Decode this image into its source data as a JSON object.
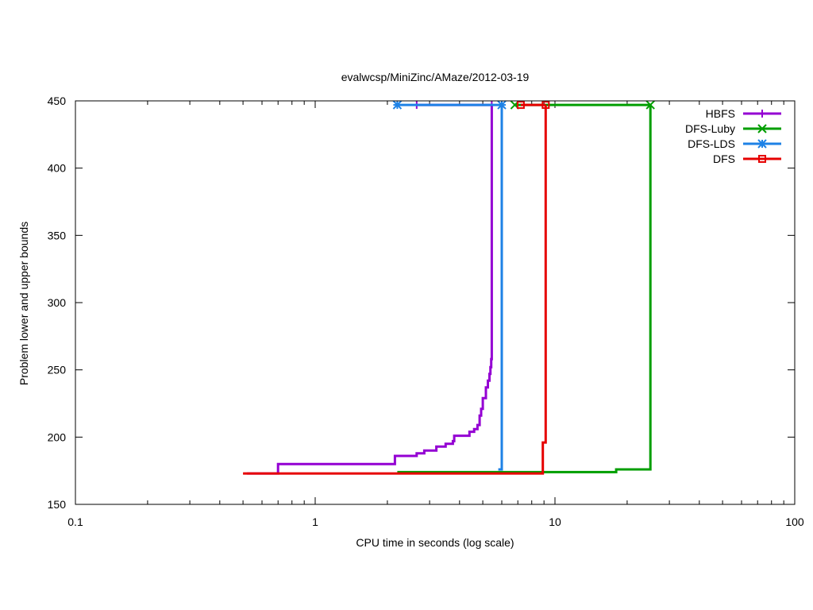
{
  "chart_data": {
    "type": "line",
    "title": "evalwcsp/MiniZinc/AMaze/2012-03-19",
    "xlabel": "CPU time in seconds (log scale)",
    "ylabel": "Problem lower and upper bounds",
    "xscale": "log",
    "xlim": [
      0.1,
      100
    ],
    "ylim": [
      150,
      450
    ],
    "xticks": [
      {
        "value": 0.1,
        "label": "0.1"
      },
      {
        "value": 1,
        "label": "1"
      },
      {
        "value": 10,
        "label": "10"
      },
      {
        "value": 100,
        "label": "100"
      }
    ],
    "yticks": [
      {
        "value": 150,
        "label": "150"
      },
      {
        "value": 200,
        "label": "200"
      },
      {
        "value": 250,
        "label": "250"
      },
      {
        "value": 300,
        "label": "300"
      },
      {
        "value": 350,
        "label": "350"
      },
      {
        "value": 400,
        "label": "400"
      },
      {
        "value": 450,
        "label": "450"
      }
    ],
    "grid": false,
    "legend_position": "top-right",
    "series": [
      {
        "name": "HBFS",
        "color": "#9400d3",
        "marker": "plus",
        "lower": [
          [
            0.52,
            173
          ],
          [
            0.7,
            180
          ],
          [
            2.15,
            186
          ],
          [
            2.65,
            188
          ],
          [
            2.85,
            190
          ],
          [
            3.2,
            193
          ],
          [
            3.5,
            195
          ],
          [
            3.75,
            197
          ],
          [
            3.8,
            201
          ],
          [
            4.4,
            204
          ],
          [
            4.6,
            206
          ],
          [
            4.75,
            209
          ],
          [
            4.85,
            216
          ],
          [
            4.92,
            221
          ],
          [
            5.0,
            229
          ],
          [
            5.15,
            237
          ],
          [
            5.25,
            242
          ],
          [
            5.33,
            247
          ],
          [
            5.38,
            252
          ],
          [
            5.42,
            258
          ],
          [
            5.45,
            447
          ]
        ],
        "upper": [
          [
            2.65,
            447
          ],
          [
            5.45,
            447
          ]
        ],
        "markers": [
          [
            2.65,
            447
          ],
          [
            5.45,
            447
          ]
        ]
      },
      {
        "name": "DFS-Luby",
        "color": "#009e00",
        "marker": "x",
        "lower": [
          [
            2.2,
            174
          ],
          [
            18.0,
            176
          ],
          [
            25.0,
            447
          ]
        ],
        "upper": [
          [
            6.8,
            447
          ],
          [
            25.0,
            447
          ]
        ],
        "markers": [
          [
            6.8,
            447
          ],
          [
            25.0,
            447
          ]
        ]
      },
      {
        "name": "DFS-LDS",
        "color": "#1e82e6",
        "marker": "star",
        "lower": [
          [
            5.8,
            176
          ],
          [
            6.0,
            447
          ]
        ],
        "upper": [
          [
            2.2,
            447
          ],
          [
            6.0,
            447
          ]
        ],
        "markers": [
          [
            2.2,
            447
          ],
          [
            6.0,
            447
          ]
        ]
      },
      {
        "name": "DFS",
        "color": "#e60000",
        "marker": "square",
        "lower": [
          [
            0.5,
            173
          ],
          [
            8.9,
            196
          ],
          [
            9.15,
            447
          ]
        ],
        "upper": [
          [
            7.2,
            447
          ],
          [
            9.15,
            447
          ]
        ],
        "markers": [
          [
            7.2,
            447
          ],
          [
            9.15,
            447
          ]
        ]
      }
    ]
  }
}
